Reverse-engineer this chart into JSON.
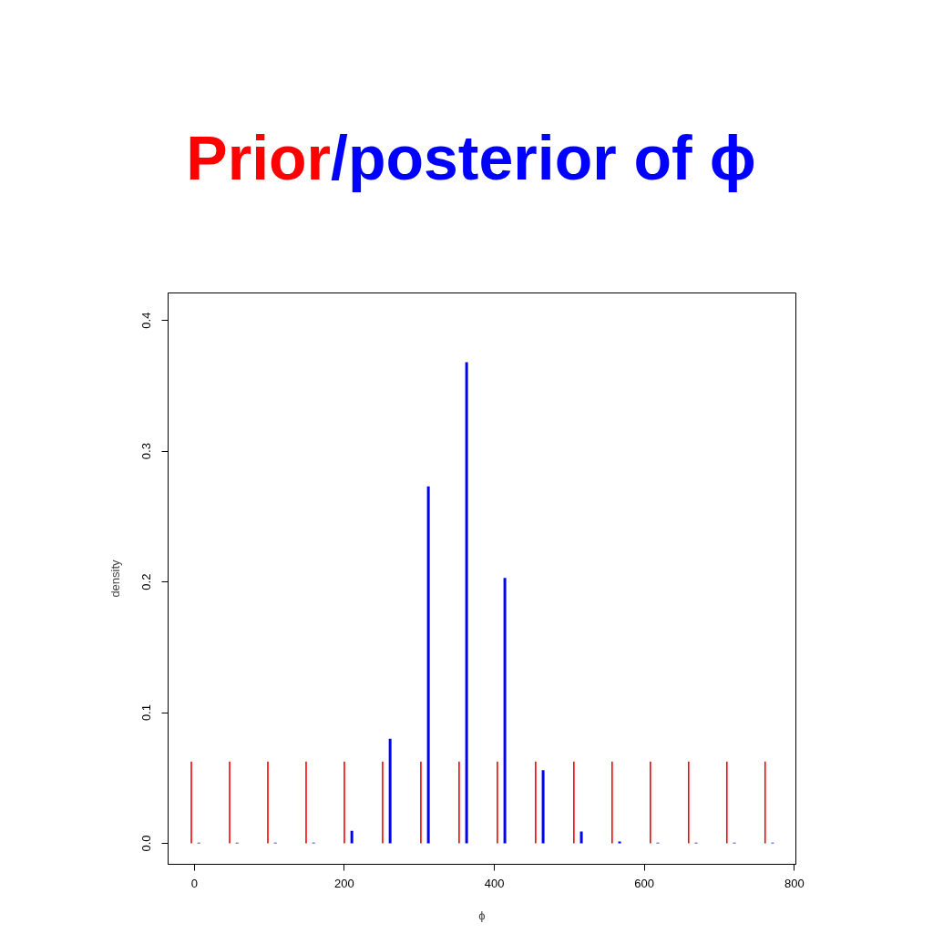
{
  "chart_data": {
    "type": "bar",
    "title": "Prior/posterior of ϕ",
    "xlabel": "ϕ",
    "ylabel": "density",
    "xlim": [
      -35,
      802
    ],
    "xticks": [
      0,
      200,
      400,
      600,
      800
    ],
    "ylim": [
      -0.016,
      0.421
    ],
    "yticks": [
      {
        "value": 0,
        "label": "0.0"
      },
      0.1,
      0.2,
      0.3,
      0.4
    ],
    "series": [
      {
        "color": "#ff0000",
        "x": [
          -4,
          47,
          98,
          149,
          200,
          251,
          302,
          353,
          404,
          455,
          506,
          557,
          608,
          659,
          710,
          761
        ],
        "values": [
          0.0625,
          0.0625,
          0.0625,
          0.0625,
          0.0625,
          0.0625,
          0.0625,
          0.0625,
          0.0625,
          0.0625,
          0.0625,
          0.0625,
          0.0625,
          0.0625,
          0.0625,
          0.0625
        ]
      },
      {
        "color": "#0000ff",
        "x": [
          6,
          57,
          108,
          159,
          210,
          261,
          312,
          363,
          414,
          465,
          516,
          567,
          618,
          669,
          720,
          771
        ],
        "values": [
          0.0005,
          0.0005,
          0.0005,
          0.0005,
          0.0096,
          0.08,
          0.273,
          0.368,
          0.203,
          0.056,
          0.0091,
          0.0015,
          0.0005,
          0.0005,
          0.0005,
          0.0005
        ]
      }
    ]
  }
}
